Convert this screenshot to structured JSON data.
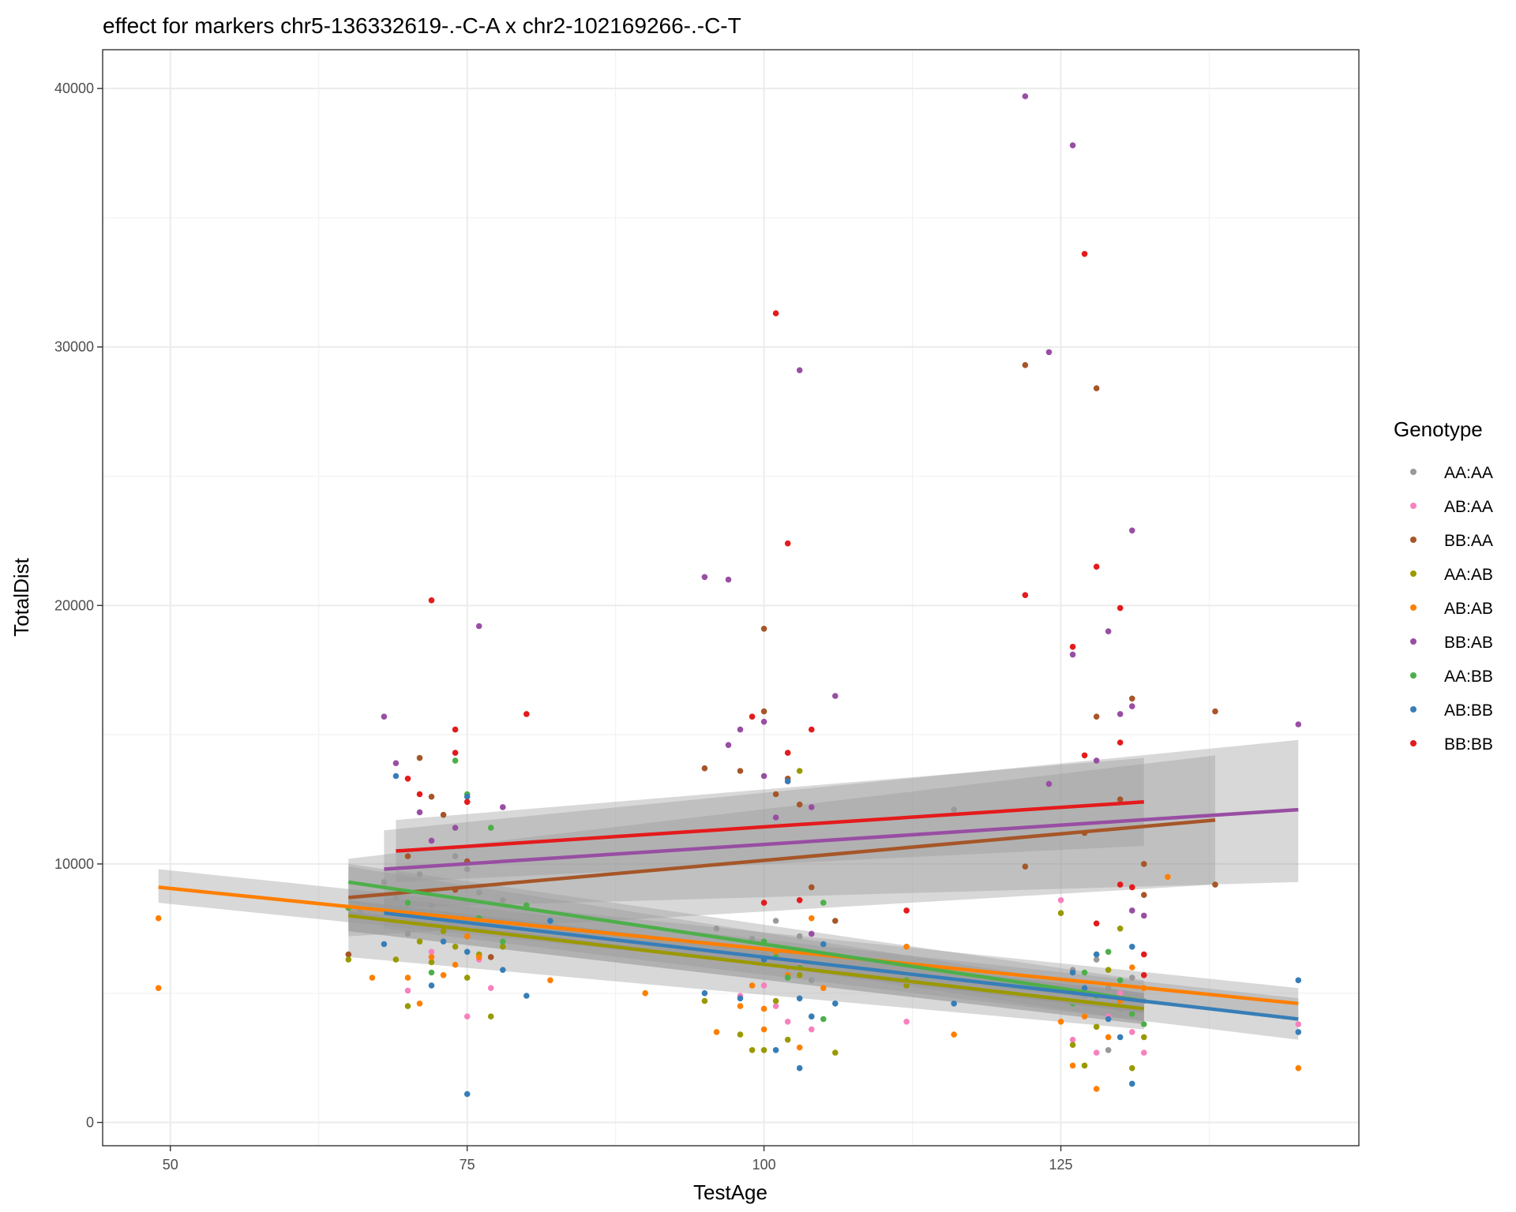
{
  "chart_data": {
    "type": "scatter",
    "title": "effect for markers chr5-136332619-.-C-A x chr2-102169266-.-C-T",
    "xlabel": "TestAge",
    "ylabel": "TotalDist",
    "xlim": [
      44.3,
      150.1
    ],
    "ylim": [
      -900,
      41500
    ],
    "x_ticks": [
      50,
      75,
      100,
      125
    ],
    "y_ticks": [
      0,
      10000,
      20000,
      30000,
      40000
    ],
    "x_tick_labels": [
      "50",
      "75",
      "100",
      "125"
    ],
    "y_tick_labels": [
      "0",
      "10000",
      "20000",
      "30000",
      "40000"
    ],
    "grid": true,
    "legend": {
      "title": "Genotype",
      "position": "right"
    },
    "series": [
      {
        "name": "AA:AA",
        "color": "#999999",
        "points": [
          [
            66,
            8200
          ],
          [
            68,
            9300
          ],
          [
            69,
            8700
          ],
          [
            70,
            7300
          ],
          [
            71,
            9600
          ],
          [
            72,
            8400
          ],
          [
            73,
            7900
          ],
          [
            74,
            10300
          ],
          [
            75,
            9800
          ],
          [
            76,
            8900
          ],
          [
            78,
            8600
          ],
          [
            80,
            8300
          ],
          [
            96,
            7500
          ],
          [
            99,
            7100
          ],
          [
            100,
            6500
          ],
          [
            101,
            7800
          ],
          [
            102,
            6000
          ],
          [
            103,
            7200
          ],
          [
            104,
            5500
          ],
          [
            116,
            12100
          ],
          [
            126,
            5900
          ],
          [
            127,
            4900
          ],
          [
            128,
            6300
          ],
          [
            129,
            5200
          ],
          [
            130,
            4400
          ],
          [
            131,
            5600
          ],
          [
            132,
            4700
          ],
          [
            129,
            2800
          ]
        ],
        "fit": {
          "x": [
            65,
            132
          ],
          "y": [
            8100,
            4300
          ],
          "ci": [
            [
              65,
              6400,
              9900
            ],
            [
              132,
              3600,
              5000
            ]
          ]
        }
      },
      {
        "name": "AB:AA",
        "color": "#F781BF",
        "points": [
          [
            70,
            5100
          ],
          [
            72,
            6600
          ],
          [
            75,
            4100
          ],
          [
            76,
            6300
          ],
          [
            77,
            5200
          ],
          [
            98,
            4900
          ],
          [
            100,
            5300
          ],
          [
            101,
            4500
          ],
          [
            102,
            3900
          ],
          [
            103,
            6200
          ],
          [
            104,
            3600
          ],
          [
            112,
            3900
          ],
          [
            125,
            8600
          ],
          [
            126,
            3200
          ],
          [
            128,
            2700
          ],
          [
            129,
            4100
          ],
          [
            130,
            5000
          ],
          [
            131,
            3500
          ],
          [
            132,
            2700
          ],
          [
            145,
            3800
          ]
        ],
        "fit": {
          "x": [
            65,
            132
          ],
          "y": [
            8000,
            4400
          ],
          "ci": [
            [
              65,
              7400,
              8600
            ],
            [
              132,
              3800,
              5000
            ]
          ]
        }
      },
      {
        "name": "BB:AA",
        "color": "#A65628",
        "points": [
          [
            65,
            6500
          ],
          [
            70,
            10300
          ],
          [
            71,
            14100
          ],
          [
            72,
            12600
          ],
          [
            73,
            11900
          ],
          [
            74,
            9000
          ],
          [
            75,
            10100
          ],
          [
            77,
            6400
          ],
          [
            95,
            13700
          ],
          [
            98,
            13600
          ],
          [
            100,
            19100
          ],
          [
            100,
            15900
          ],
          [
            101,
            12700
          ],
          [
            102,
            13300
          ],
          [
            103,
            12300
          ],
          [
            104,
            9100
          ],
          [
            106,
            7800
          ],
          [
            122,
            29300
          ],
          [
            122,
            9900
          ],
          [
            127,
            11200
          ],
          [
            128,
            28400
          ],
          [
            128,
            15700
          ],
          [
            130,
            12500
          ],
          [
            131,
            16400
          ],
          [
            132,
            10000
          ],
          [
            138,
            15900
          ],
          [
            138,
            9200
          ],
          [
            132,
            8800
          ]
        ],
        "fit": {
          "x": [
            65,
            138
          ],
          "y": [
            8700,
            11700
          ],
          "ci": [
            [
              65,
              7200,
              10200
            ],
            [
              138,
              9200,
              14200
            ]
          ]
        }
      },
      {
        "name": "AA:AB",
        "color": "#999900",
        "points": [
          [
            65,
            6300
          ],
          [
            69,
            6300
          ],
          [
            70,
            4500
          ],
          [
            71,
            7000
          ],
          [
            72,
            6200
          ],
          [
            73,
            7400
          ],
          [
            74,
            6800
          ],
          [
            75,
            5600
          ],
          [
            76,
            6500
          ],
          [
            77,
            4100
          ],
          [
            78,
            6800
          ],
          [
            95,
            4700
          ],
          [
            98,
            3400
          ],
          [
            99,
            2800
          ],
          [
            100,
            2800
          ],
          [
            101,
            4700
          ],
          [
            102,
            3200
          ],
          [
            103,
            5700
          ],
          [
            103,
            13600
          ],
          [
            104,
            4100
          ],
          [
            106,
            2700
          ],
          [
            112,
            5300
          ],
          [
            125,
            8100
          ],
          [
            126,
            3000
          ],
          [
            127,
            2200
          ],
          [
            128,
            3700
          ],
          [
            129,
            5900
          ],
          [
            130,
            7500
          ],
          [
            131,
            2100
          ],
          [
            132,
            3300
          ],
          [
            128,
            6500
          ]
        ],
        "fit": {
          "x": [
            65,
            132
          ],
          "y": [
            8000,
            4400
          ],
          "ci": [
            [
              65,
              7400,
              8600
            ],
            [
              132,
              3800,
              5000
            ]
          ]
        }
      },
      {
        "name": "AB:AB",
        "color": "#FF7F00",
        "points": [
          [
            49,
            7900
          ],
          [
            49,
            5200
          ],
          [
            67,
            5600
          ],
          [
            70,
            5600
          ],
          [
            71,
            4600
          ],
          [
            72,
            6400
          ],
          [
            73,
            5700
          ],
          [
            74,
            6100
          ],
          [
            75,
            7200
          ],
          [
            76,
            6400
          ],
          [
            82,
            5500
          ],
          [
            90,
            5000
          ],
          [
            96,
            3500
          ],
          [
            98,
            4500
          ],
          [
            99,
            5300
          ],
          [
            100,
            4400
          ],
          [
            100,
            3600
          ],
          [
            101,
            6600
          ],
          [
            102,
            5700
          ],
          [
            103,
            2900
          ],
          [
            104,
            7900
          ],
          [
            105,
            5200
          ],
          [
            112,
            6800
          ],
          [
            116,
            3400
          ],
          [
            125,
            3900
          ],
          [
            126,
            2200
          ],
          [
            127,
            4100
          ],
          [
            128,
            1300
          ],
          [
            129,
            3300
          ],
          [
            130,
            4700
          ],
          [
            131,
            6000
          ],
          [
            132,
            5200
          ],
          [
            134,
            9500
          ],
          [
            145,
            2100
          ]
        ],
        "fit": {
          "x": [
            49,
            145
          ],
          "y": [
            9100,
            4600
          ],
          "ci": [
            [
              49,
              8500,
              9800
            ],
            [
              145,
              4000,
              5200
            ]
          ]
        }
      },
      {
        "name": "BB:AB",
        "color": "#984EA3",
        "points": [
          [
            68,
            15700
          ],
          [
            69,
            13900
          ],
          [
            71,
            12000
          ],
          [
            72,
            10900
          ],
          [
            74,
            11400
          ],
          [
            76,
            19200
          ],
          [
            78,
            12200
          ],
          [
            95,
            21100
          ],
          [
            97,
            21000
          ],
          [
            97,
            14600
          ],
          [
            98,
            15200
          ],
          [
            100,
            15500
          ],
          [
            100,
            13400
          ],
          [
            101,
            11800
          ],
          [
            102,
            13200
          ],
          [
            103,
            29100
          ],
          [
            104,
            12200
          ],
          [
            104,
            7300
          ],
          [
            106,
            16500
          ],
          [
            122,
            39700
          ],
          [
            124,
            29800
          ],
          [
            124,
            13100
          ],
          [
            126,
            37800
          ],
          [
            126,
            18100
          ],
          [
            128,
            14000
          ],
          [
            129,
            19000
          ],
          [
            130,
            15800
          ],
          [
            131,
            22900
          ],
          [
            131,
            16100
          ],
          [
            131,
            8200
          ],
          [
            132,
            8000
          ],
          [
            145,
            15400
          ]
        ],
        "fit": {
          "x": [
            68,
            145
          ],
          "y": [
            9800,
            12100
          ],
          "ci": [
            [
              68,
              8300,
              11300
            ],
            [
              145,
              9300,
              14800
            ]
          ]
        }
      },
      {
        "name": "AA:BB",
        "color": "#4DAF4A",
        "points": [
          [
            65,
            8300
          ],
          [
            70,
            8500
          ],
          [
            72,
            5800
          ],
          [
            74,
            14000
          ],
          [
            75,
            12700
          ],
          [
            76,
            7900
          ],
          [
            77,
            11400
          ],
          [
            78,
            7000
          ],
          [
            80,
            8400
          ],
          [
            100,
            7000
          ],
          [
            101,
            6400
          ],
          [
            102,
            5600
          ],
          [
            103,
            6000
          ],
          [
            105,
            8500
          ],
          [
            105,
            4000
          ],
          [
            112,
            5500
          ],
          [
            126,
            4600
          ],
          [
            127,
            5800
          ],
          [
            128,
            4900
          ],
          [
            129,
            6600
          ],
          [
            130,
            5500
          ],
          [
            131,
            4200
          ],
          [
            132,
            3800
          ]
        ],
        "fit": {
          "x": [
            65,
            132
          ],
          "y": [
            9300,
            4700
          ],
          "ci": [
            [
              65,
              8500,
              10000
            ],
            [
              132,
              3900,
              5500
            ]
          ]
        }
      },
      {
        "name": "AB:BB",
        "color": "#377EB8",
        "points": [
          [
            68,
            6900
          ],
          [
            69,
            13400
          ],
          [
            72,
            5300
          ],
          [
            73,
            7000
          ],
          [
            75,
            12600
          ],
          [
            75,
            6600
          ],
          [
            75,
            1100
          ],
          [
            78,
            5900
          ],
          [
            80,
            4900
          ],
          [
            82,
            7800
          ],
          [
            95,
            5000
          ],
          [
            98,
            4800
          ],
          [
            100,
            6300
          ],
          [
            101,
            2800
          ],
          [
            102,
            13200
          ],
          [
            103,
            2100
          ],
          [
            103,
            4800
          ],
          [
            104,
            4100
          ],
          [
            105,
            6900
          ],
          [
            106,
            4600
          ],
          [
            116,
            4600
          ],
          [
            126,
            5800
          ],
          [
            127,
            5200
          ],
          [
            128,
            6500
          ],
          [
            129,
            4000
          ],
          [
            130,
            3300
          ],
          [
            131,
            1500
          ],
          [
            131,
            6800
          ],
          [
            145,
            5500
          ],
          [
            145,
            3500
          ]
        ],
        "fit": {
          "x": [
            68,
            145
          ],
          "y": [
            8100,
            4000
          ],
          "ci": [
            [
              68,
              7500,
              8700
            ],
            [
              145,
              3200,
              4800
            ]
          ]
        }
      },
      {
        "name": "BB:BB",
        "color": "#E41A1C",
        "points": [
          [
            70,
            13300
          ],
          [
            71,
            12700
          ],
          [
            72,
            20200
          ],
          [
            74,
            15200
          ],
          [
            74,
            14300
          ],
          [
            75,
            12400
          ],
          [
            80,
            15800
          ],
          [
            99,
            15700
          ],
          [
            100,
            8500
          ],
          [
            101,
            31300
          ],
          [
            102,
            22400
          ],
          [
            102,
            14300
          ],
          [
            103,
            8600
          ],
          [
            104,
            15200
          ],
          [
            112,
            8200
          ],
          [
            122,
            20400
          ],
          [
            126,
            18400
          ],
          [
            127,
            33600
          ],
          [
            127,
            14200
          ],
          [
            128,
            21500
          ],
          [
            128,
            7700
          ],
          [
            130,
            19900
          ],
          [
            130,
            14700
          ],
          [
            130,
            9200
          ],
          [
            131,
            9100
          ],
          [
            132,
            6500
          ],
          [
            132,
            5700
          ]
        ],
        "fit": {
          "x": [
            69,
            132
          ],
          "y": [
            10500,
            12400
          ],
          "ci": [
            [
              69,
              9300,
              11700
            ],
            [
              132,
              10700,
              14100
            ]
          ]
        }
      }
    ]
  }
}
